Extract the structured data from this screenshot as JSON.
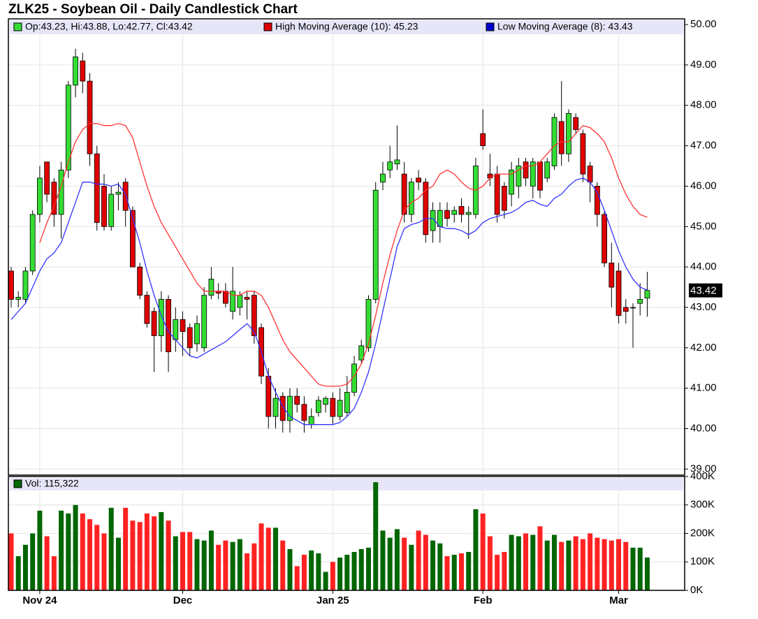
{
  "chart_data": [
    {
      "type": "candlestick",
      "title": "ZLK25 - Soybean Oil - Daily Candlestick Chart",
      "ohlc_label": "Op:43.23, Hi:43.88, Lo:42.77, Cl:43.42",
      "up_color": "#33dd33",
      "down_color": "#e00000",
      "categories": [
        null,
        null,
        null,
        null,
        "Nov 24",
        null,
        null,
        null,
        null,
        null,
        null,
        null,
        null,
        null,
        null,
        null,
        null,
        null,
        null,
        null,
        null,
        null,
        null,
        null,
        "Dec",
        null,
        null,
        null,
        null,
        null,
        null,
        null,
        null,
        null,
        null,
        null,
        null,
        null,
        null,
        null,
        null,
        null,
        null,
        null,
        null,
        "Jan 25",
        null,
        null,
        null,
        null,
        null,
        null,
        null,
        null,
        null,
        null,
        null,
        null,
        null,
        null,
        null,
        null,
        null,
        null,
        null,
        null,
        "Feb",
        null,
        null,
        null,
        null,
        null,
        null,
        null,
        null,
        null,
        null,
        null,
        null,
        null,
        null,
        null,
        null,
        null,
        null,
        "Mar",
        null,
        null,
        null,
        null
      ],
      "open": [
        43.9,
        43.2,
        43.2,
        43.9,
        45.3,
        46.6,
        46.1,
        45.3,
        46.4,
        48.5,
        49.1,
        48.6,
        46.8,
        46.0,
        45.0,
        45.8,
        46.1,
        45.4,
        44.0,
        43.3,
        42.9,
        42.3,
        43.2,
        42.2,
        42.7,
        42.5,
        42.1,
        42.0,
        43.3,
        43.4,
        43.4,
        42.9,
        43.0,
        43.25,
        43.3,
        42.5,
        41.3,
        40.3,
        40.8,
        40.2,
        40.8,
        40.6,
        40.1,
        40.4,
        40.6,
        40.75,
        40.3,
        40.4,
        40.9,
        41.7,
        42.0,
        43.2,
        46.1,
        46.4,
        46.55,
        46.3,
        45.3,
        46.2,
        46.1,
        44.9,
        45.0,
        45.4,
        45.3,
        45.5,
        45.3,
        45.3,
        47.3,
        46.3,
        46.3,
        46.0,
        45.8,
        46.0,
        46.6,
        46.0,
        46.6,
        46.2,
        46.5,
        47.6,
        46.8,
        47.7,
        47.3,
        46.5,
        46.0,
        45.3,
        44.1,
        43.9,
        43.0,
        43.0,
        43.1,
        43.23
      ],
      "high": [
        44.0,
        43.4,
        44.0,
        45.4,
        46.5,
        46.6,
        46.2,
        46.6,
        48.6,
        49.4,
        49.3,
        48.8,
        47.0,
        46.3,
        46.0,
        46.1,
        46.2,
        45.5,
        44.1,
        43.4,
        43.0,
        43.4,
        43.3,
        43.0,
        42.9,
        42.6,
        42.8,
        43.5,
        44.0,
        43.6,
        43.6,
        44.0,
        43.4,
        43.4,
        43.4,
        42.6,
        41.5,
        41.0,
        40.9,
        41.0,
        41.0,
        40.8,
        40.5,
        40.8,
        40.8,
        40.9,
        41.0,
        41.3,
        41.8,
        42.2,
        43.3,
        46.1,
        46.6,
        47.0,
        47.5,
        46.6,
        46.2,
        46.4,
        46.2,
        45.6,
        45.6,
        45.6,
        45.5,
        45.7,
        45.5,
        46.7,
        47.9,
        46.8,
        46.5,
        46.1,
        46.6,
        46.7,
        46.7,
        46.7,
        46.6,
        46.7,
        47.8,
        48.6,
        47.9,
        47.8,
        47.4,
        46.6,
        46.1,
        45.4,
        44.6,
        44.1,
        43.2,
        43.1,
        43.6,
        43.88
      ],
      "low": [
        43.0,
        43.0,
        43.1,
        43.8,
        45.1,
        45.6,
        45.0,
        44.7,
        46.2,
        48.2,
        48.3,
        46.5,
        44.9,
        44.9,
        44.9,
        45.4,
        45.0,
        44.0,
        43.2,
        42.5,
        41.4,
        41.9,
        41.4,
        41.9,
        41.8,
        41.8,
        41.9,
        41.9,
        43.2,
        43.2,
        43.0,
        42.7,
        42.8,
        42.7,
        42.1,
        41.1,
        40.0,
        40.0,
        39.9,
        39.9,
        40.4,
        39.9,
        40.0,
        40.3,
        40.4,
        40.1,
        40.2,
        40.3,
        40.8,
        41.6,
        41.9,
        43.1,
        45.9,
        46.2,
        46.4,
        45.1,
        45.1,
        45.9,
        44.6,
        44.6,
        44.6,
        45.0,
        45.1,
        45.1,
        44.7,
        45.2,
        46.9,
        46.0,
        45.1,
        45.2,
        45.5,
        45.7,
        46.0,
        45.7,
        45.7,
        46.1,
        46.4,
        46.5,
        46.6,
        47.3,
        46.1,
        45.6,
        45.0,
        44.0,
        43.0,
        42.6,
        42.6,
        42.0,
        42.8,
        42.77
      ],
      "close": [
        43.2,
        43.25,
        43.9,
        45.3,
        46.2,
        45.8,
        45.3,
        46.4,
        48.5,
        49.2,
        48.6,
        46.8,
        45.1,
        45.0,
        45.8,
        45.85,
        45.4,
        44.0,
        43.3,
        42.6,
        42.3,
        43.2,
        41.9,
        42.7,
        42.4,
        42.0,
        42.6,
        43.3,
        43.7,
        43.35,
        43.1,
        43.4,
        43.3,
        43.2,
        42.3,
        41.3,
        40.3,
        40.75,
        40.2,
        40.8,
        40.6,
        40.2,
        40.3,
        40.7,
        40.75,
        40.3,
        40.7,
        40.9,
        41.6,
        42.05,
        43.2,
        45.9,
        46.3,
        46.6,
        46.65,
        45.3,
        46.1,
        46.1,
        44.8,
        45.4,
        45.4,
        45.2,
        45.4,
        45.3,
        45.35,
        46.5,
        47.0,
        46.2,
        45.3,
        45.4,
        46.4,
        46.5,
        46.2,
        46.6,
        45.9,
        46.6,
        47.7,
        46.8,
        47.8,
        47.4,
        46.3,
        46.1,
        45.3,
        44.1,
        43.5,
        42.8,
        42.9,
        43.0,
        43.2,
        43.42
      ],
      "series": [
        {
          "name": "High Moving Average (10): 45.23",
          "color": "#ff3333",
          "values": [
            null,
            null,
            null,
            null,
            44.6,
            45.1,
            45.5,
            46.0,
            46.6,
            47.1,
            47.4,
            47.55,
            47.55,
            47.5,
            47.5,
            47.55,
            47.5,
            47.2,
            46.6,
            46.0,
            45.5,
            45.1,
            44.8,
            44.5,
            44.2,
            43.9,
            43.6,
            43.4,
            43.4,
            43.4,
            43.4,
            43.3,
            43.3,
            43.4,
            43.4,
            43.3,
            43.0,
            42.6,
            42.2,
            41.9,
            41.7,
            41.5,
            41.3,
            41.1,
            41.05,
            41.05,
            41.05,
            41.1,
            41.3,
            41.6,
            42.1,
            42.8,
            43.6,
            44.3,
            44.9,
            45.4,
            45.6,
            45.7,
            45.9,
            46.0,
            46.3,
            46.4,
            46.3,
            46.1,
            45.95,
            45.9,
            46.0,
            46.2,
            46.3,
            46.3,
            46.3,
            46.4,
            46.5,
            46.5,
            46.6,
            46.8,
            47.0,
            47.1,
            47.1,
            47.3,
            47.5,
            47.45,
            47.3,
            47.1,
            46.7,
            46.2,
            45.8,
            45.5,
            45.3,
            45.23
          ]
        },
        {
          "name": "Low Moving Average (8): 43.43",
          "color": "#3333ff",
          "values": [
            42.7,
            42.9,
            43.1,
            43.5,
            43.9,
            44.2,
            44.35,
            44.6,
            45.1,
            45.6,
            46.1,
            46.1,
            46.05,
            46.05,
            46.0,
            46.05,
            45.8,
            45.2,
            44.6,
            43.9,
            43.3,
            42.8,
            42.4,
            42.2,
            42.0,
            41.8,
            41.75,
            41.85,
            41.95,
            42.05,
            42.15,
            42.3,
            42.45,
            42.6,
            42.4,
            41.9,
            41.3,
            40.9,
            40.55,
            40.3,
            40.2,
            40.1,
            40.1,
            40.1,
            40.1,
            40.1,
            40.15,
            40.3,
            40.5,
            40.9,
            41.4,
            42.1,
            42.9,
            43.7,
            44.5,
            44.95,
            45.05,
            45.1,
            45.2,
            45.2,
            45.0,
            44.95,
            44.95,
            44.9,
            44.8,
            44.9,
            45.1,
            45.2,
            45.25,
            45.3,
            45.35,
            45.45,
            45.6,
            45.65,
            45.55,
            45.5,
            45.7,
            45.8,
            46.0,
            46.15,
            46.2,
            46.1,
            45.85,
            45.4,
            44.9,
            44.4,
            44.0,
            43.7,
            43.5,
            43.43
          ]
        }
      ],
      "ylim": [
        38.85,
        50.14
      ],
      "yticks": [
        {
          "value": 39,
          "label": "39.00"
        },
        {
          "value": 40,
          "label": "40.00"
        },
        {
          "value": 41,
          "label": "41.00"
        },
        {
          "value": 42,
          "label": "42.00"
        },
        {
          "value": 43,
          "label": "43.00"
        },
        {
          "value": 44,
          "label": "44.00"
        },
        {
          "value": 45,
          "label": "45.00"
        },
        {
          "value": 46,
          "label": "46.00"
        },
        {
          "value": 47,
          "label": "47.00"
        },
        {
          "value": 48,
          "label": "48.00"
        },
        {
          "value": 49,
          "label": "49.00"
        },
        {
          "value": 50,
          "label": "50.00"
        }
      ],
      "grid": true
    },
    {
      "type": "volume",
      "name": "Vol: 115,322",
      "color": "#006600",
      "up_color": "#006600",
      "down_color": "#ff2222",
      "values": [
        200000,
        120000,
        160000,
        200000,
        280000,
        190000,
        120000,
        280000,
        270000,
        300000,
        270000,
        250000,
        230000,
        200000,
        290000,
        185000,
        290000,
        245000,
        240000,
        270000,
        260000,
        275000,
        245000,
        190000,
        205000,
        205000,
        180000,
        175000,
        210000,
        160000,
        175000,
        170000,
        180000,
        130000,
        165000,
        235000,
        220000,
        220000,
        175000,
        145000,
        85000,
        125000,
        140000,
        130000,
        65000,
        100000,
        115000,
        125000,
        135000,
        145000,
        150000,
        380000,
        210000,
        185000,
        215000,
        185000,
        160000,
        210000,
        195000,
        175000,
        165000,
        120000,
        125000,
        130000,
        135000,
        285000,
        270000,
        190000,
        125000,
        135000,
        195000,
        190000,
        200000,
        195000,
        225000,
        175000,
        195000,
        170000,
        175000,
        190000,
        180000,
        200000,
        185000,
        180000,
        175000,
        180000,
        170000,
        150000,
        150000,
        115322
      ],
      "ylim": [
        0,
        400000
      ],
      "yticks": [
        {
          "value": 0,
          "label": "0K"
        },
        {
          "value": 100000,
          "label": "100K"
        },
        {
          "value": 200000,
          "label": "200K"
        },
        {
          "value": 300000,
          "label": "300K"
        },
        {
          "value": 400000,
          "label": "400K"
        }
      ],
      "grid": true
    }
  ]
}
